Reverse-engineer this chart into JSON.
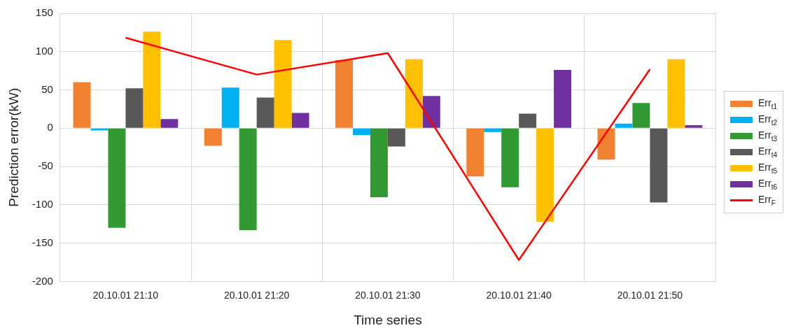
{
  "chart_data": {
    "type": "bar",
    "xlabel": "Time series",
    "ylabel": "Prediction error(kW)",
    "categories": [
      "20.10.01 21:10",
      "20.10.01 21:20",
      "20.10.01 21:30",
      "20.10.01 21:40",
      "20.10.01 21:50"
    ],
    "series": [
      {
        "name": "Err$_{t1}$",
        "color": "#f08232",
        "values": [
          60,
          -23,
          89,
          -63,
          -41
        ]
      },
      {
        "name": "Err$_{t2}$",
        "color": "#00b0f0",
        "values": [
          -3,
          53,
          -9,
          -5,
          6
        ]
      },
      {
        "name": "Err$_{t3}$",
        "color": "#339933",
        "values": [
          -130,
          -133,
          -90,
          -77,
          33
        ]
      },
      {
        "name": "Err$_{t4}$",
        "color": "#595959",
        "values": [
          52,
          40,
          -24,
          19,
          -97
        ]
      },
      {
        "name": "Err$_{t5}$",
        "color": "#ffc000",
        "values": [
          126,
          115,
          90,
          -122,
          90
        ]
      },
      {
        "name": "Err$_{t6}$",
        "color": "#7030a0",
        "values": [
          12,
          20,
          42,
          76,
          4
        ]
      },
      {
        "name": "Err$_{F}$",
        "type": "line",
        "color": "#ff0000",
        "values": [
          118,
          70,
          98,
          -172,
          77
        ]
      }
    ],
    "ylim": [
      -200,
      150
    ],
    "yticks": [
      -200,
      -150,
      -100,
      -50,
      0,
      50,
      100,
      150
    ],
    "grid": true,
    "legend": "right",
    "marker": "none"
  }
}
